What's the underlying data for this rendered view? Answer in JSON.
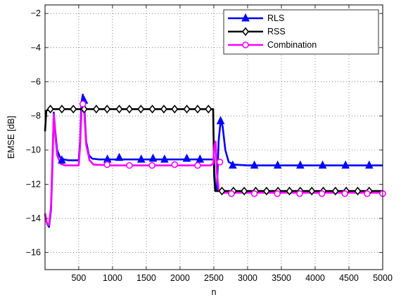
{
  "chart_data": {
    "type": "line",
    "title": "",
    "xlabel": "n",
    "ylabel": "EMSE [dB]",
    "xlim": [
      1,
      5000
    ],
    "ylim": [
      -17,
      -1.5
    ],
    "xticks": [
      500,
      1000,
      1500,
      2000,
      2500,
      3000,
      3500,
      4000,
      4500,
      5000
    ],
    "yticks": [
      -16,
      -14,
      -12,
      -10,
      -8,
      -6,
      -4,
      -2
    ],
    "grid": true,
    "legend_position": "top-right",
    "series": [
      {
        "name": "RLS",
        "color": "#0000ff",
        "marker": "triangle",
        "points": [
          [
            1,
            -13.8
          ],
          [
            30,
            -14.3
          ],
          [
            60,
            -14.5
          ],
          [
            90,
            -13.5
          ],
          [
            110,
            -11.0
          ],
          [
            130,
            -7.8
          ],
          [
            150,
            -8.8
          ],
          [
            180,
            -10.0
          ],
          [
            220,
            -10.4
          ],
          [
            280,
            -10.55
          ],
          [
            350,
            -10.6
          ],
          [
            450,
            -10.6
          ],
          [
            500,
            -10.6
          ],
          [
            520,
            -9.5
          ],
          [
            540,
            -7.2
          ],
          [
            560,
            -6.75
          ],
          [
            580,
            -7.3
          ],
          [
            610,
            -9.5
          ],
          [
            650,
            -10.3
          ],
          [
            700,
            -10.5
          ],
          [
            800,
            -10.55
          ],
          [
            1000,
            -10.55
          ],
          [
            1500,
            -10.55
          ],
          [
            2000,
            -10.55
          ],
          [
            2400,
            -10.55
          ],
          [
            2500,
            -10.55
          ],
          [
            2520,
            -12.2
          ],
          [
            2545,
            -12.3
          ],
          [
            2570,
            -9.5
          ],
          [
            2600,
            -8.3
          ],
          [
            2630,
            -8.6
          ],
          [
            2670,
            -10.0
          ],
          [
            2720,
            -10.7
          ],
          [
            2800,
            -10.85
          ],
          [
            3000,
            -10.9
          ],
          [
            3500,
            -10.9
          ],
          [
            4000,
            -10.9
          ],
          [
            4500,
            -10.9
          ],
          [
            5000,
            -10.9
          ]
        ],
        "markers": [
          [
            250,
            -10.6
          ],
          [
            580,
            -7.1
          ],
          [
            925,
            -10.55
          ],
          [
            1100,
            -10.45
          ],
          [
            1425,
            -10.55
          ],
          [
            1600,
            -10.5
          ],
          [
            1770,
            -10.55
          ],
          [
            2100,
            -10.5
          ],
          [
            2295,
            -10.55
          ],
          [
            2600,
            -8.3
          ],
          [
            2780,
            -10.9
          ],
          [
            3100,
            -10.9
          ],
          [
            3445,
            -10.9
          ],
          [
            3780,
            -10.9
          ],
          [
            4110,
            -10.9
          ],
          [
            4450,
            -10.9
          ],
          [
            4800,
            -10.9
          ]
        ]
      },
      {
        "name": "RSS",
        "color": "#000000",
        "marker": "diamond",
        "points": [
          [
            1,
            -8.9
          ],
          [
            20,
            -7.7
          ],
          [
            60,
            -7.6
          ],
          [
            500,
            -7.6
          ],
          [
            1000,
            -7.6
          ],
          [
            1500,
            -7.6
          ],
          [
            2000,
            -7.6
          ],
          [
            2490,
            -7.6
          ],
          [
            2505,
            -11.5
          ],
          [
            2520,
            -12.4
          ],
          [
            3000,
            -12.4
          ],
          [
            3500,
            -12.4
          ],
          [
            4000,
            -12.4
          ],
          [
            4500,
            -12.4
          ],
          [
            5000,
            -12.4
          ]
        ],
        "markers": [
          [
            80,
            -7.6
          ],
          [
            250,
            -7.6
          ],
          [
            420,
            -7.6
          ],
          [
            580,
            -7.6
          ],
          [
            760,
            -7.6
          ],
          [
            920,
            -7.6
          ],
          [
            1100,
            -7.6
          ],
          [
            1250,
            -7.6
          ],
          [
            1420,
            -7.6
          ],
          [
            1590,
            -7.6
          ],
          [
            1760,
            -7.6
          ],
          [
            1920,
            -7.6
          ],
          [
            2100,
            -7.6
          ],
          [
            2260,
            -7.6
          ],
          [
            2420,
            -7.6
          ],
          [
            2620,
            -12.4
          ],
          [
            2790,
            -12.4
          ],
          [
            2950,
            -12.4
          ],
          [
            3120,
            -12.4
          ],
          [
            3280,
            -12.4
          ],
          [
            3450,
            -12.4
          ],
          [
            3620,
            -12.4
          ],
          [
            3780,
            -12.4
          ],
          [
            3950,
            -12.4
          ],
          [
            4120,
            -12.4
          ],
          [
            4300,
            -12.4
          ],
          [
            4460,
            -12.4
          ],
          [
            4630,
            -12.4
          ],
          [
            4800,
            -12.4
          ]
        ]
      },
      {
        "name": "Combination",
        "color": "#ff00ff",
        "marker": "circle",
        "points": [
          [
            1,
            -13.7
          ],
          [
            30,
            -14.3
          ],
          [
            60,
            -14.4
          ],
          [
            90,
            -13.3
          ],
          [
            110,
            -10.5
          ],
          [
            130,
            -7.9
          ],
          [
            150,
            -9.0
          ],
          [
            180,
            -10.3
          ],
          [
            230,
            -10.8
          ],
          [
            300,
            -10.9
          ],
          [
            500,
            -10.9
          ],
          [
            520,
            -9.8
          ],
          [
            540,
            -7.8
          ],
          [
            560,
            -7.3
          ],
          [
            580,
            -7.7
          ],
          [
            610,
            -9.7
          ],
          [
            660,
            -10.6
          ],
          [
            720,
            -10.85
          ],
          [
            1000,
            -10.9
          ],
          [
            1500,
            -10.9
          ],
          [
            2000,
            -10.9
          ],
          [
            2450,
            -10.9
          ],
          [
            2490,
            -10.8
          ],
          [
            2510,
            -9.7
          ],
          [
            2525,
            -9.5
          ],
          [
            2545,
            -11.3
          ],
          [
            2570,
            -12.3
          ],
          [
            2620,
            -12.5
          ],
          [
            3000,
            -12.5
          ],
          [
            3500,
            -12.5
          ],
          [
            4000,
            -12.5
          ],
          [
            4500,
            -12.5
          ],
          [
            5000,
            -12.5
          ]
        ],
        "markers": [
          [
            560,
            -7.3
          ],
          [
            920,
            -10.85
          ],
          [
            1250,
            -10.9
          ],
          [
            1585,
            -10.9
          ],
          [
            1920,
            -10.85
          ],
          [
            2260,
            -10.9
          ],
          [
            2590,
            -10.7
          ],
          [
            2760,
            -12.55
          ],
          [
            3100,
            -12.55
          ],
          [
            3440,
            -12.55
          ],
          [
            3770,
            -12.55
          ],
          [
            4100,
            -12.55
          ],
          [
            4440,
            -12.55
          ],
          [
            4770,
            -12.55
          ],
          [
            5000,
            -12.55
          ]
        ]
      }
    ]
  }
}
